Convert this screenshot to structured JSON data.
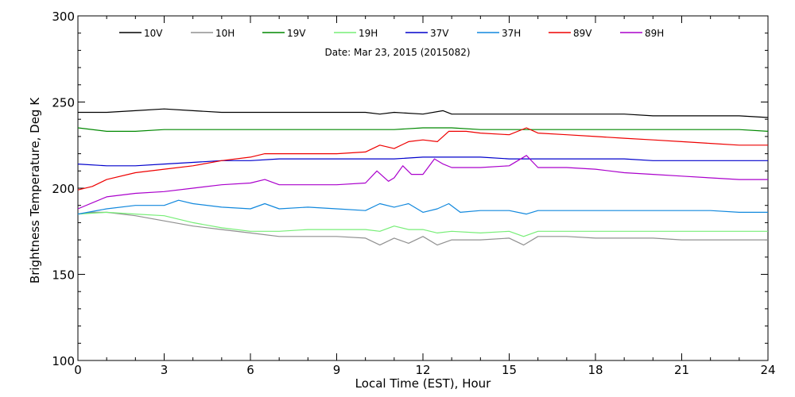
{
  "chart_data": {
    "type": "line",
    "subtitle": "Date: Mar 23, 2015 (2015082)",
    "xlabel": "Local Time (EST), Hour",
    "ylabel": "Brightness Temperature, Deg K",
    "xlim": [
      0,
      24
    ],
    "ylim": [
      100,
      300
    ],
    "x_ticks": [
      "0",
      "3",
      "6",
      "9",
      "12",
      "15",
      "18",
      "21",
      "24"
    ],
    "y_ticks": [
      "100",
      "150",
      "200",
      "250",
      "300"
    ],
    "grid": false,
    "legend_position": "top",
    "series": [
      {
        "name": "10V",
        "color": "#000000",
        "x": [
          0,
          1,
          2,
          3,
          4,
          5,
          6,
          7,
          8,
          9,
          10,
          10.5,
          11,
          12,
          12.7,
          13,
          14,
          15,
          15.5,
          16,
          17,
          18,
          19,
          20,
          21,
          22,
          23,
          24
        ],
        "y": [
          244,
          244,
          245,
          246,
          245,
          244,
          244,
          244,
          244,
          244,
          244,
          243,
          244,
          243,
          245,
          243,
          243,
          243,
          243,
          243,
          243,
          243,
          243,
          242,
          242,
          242,
          242,
          241
        ]
      },
      {
        "name": "10H",
        "color": "#909090",
        "x": [
          0,
          0.5,
          1,
          2,
          3,
          4,
          5,
          6,
          7,
          8,
          9,
          10,
          10.5,
          11,
          11.5,
          12,
          12.5,
          13,
          14,
          15,
          15.5,
          16,
          17,
          18,
          19,
          20,
          21,
          22,
          23,
          24
        ],
        "y": [
          185,
          186,
          186,
          184,
          181,
          178,
          176,
          174,
          172,
          172,
          172,
          171,
          167,
          171,
          168,
          172,
          167,
          170,
          170,
          171,
          167,
          172,
          172,
          171,
          171,
          171,
          170,
          170,
          170,
          170
        ]
      },
      {
        "name": "19V",
        "color": "#008800",
        "x": [
          0,
          1,
          2,
          3,
          4,
          5,
          6,
          7,
          8,
          9,
          10,
          11,
          12,
          13,
          14,
          15,
          16,
          17,
          18,
          19,
          20,
          21,
          22,
          23,
          24
        ],
        "y": [
          235,
          233,
          233,
          234,
          234,
          234,
          234,
          234,
          234,
          234,
          234,
          234,
          235,
          235,
          234,
          234,
          234,
          234,
          234,
          234,
          234,
          234,
          234,
          234,
          233
        ]
      },
      {
        "name": "19H",
        "color": "#77ee77",
        "x": [
          0,
          1,
          2,
          3,
          4,
          5,
          6,
          7,
          8,
          9,
          10,
          10.5,
          11,
          11.5,
          12,
          12.5,
          13,
          14,
          15,
          15.5,
          16,
          17,
          18,
          19,
          20,
          21,
          22,
          23,
          24
        ],
        "y": [
          185,
          186,
          185,
          184,
          180,
          177,
          175,
          175,
          176,
          176,
          176,
          175,
          178,
          176,
          176,
          174,
          175,
          174,
          175,
          172,
          175,
          175,
          175,
          175,
          175,
          175,
          175,
          175,
          175
        ]
      },
      {
        "name": "37V",
        "color": "#0000cc",
        "x": [
          0,
          1,
          2,
          3,
          4,
          5,
          6,
          7,
          8,
          9,
          10,
          11,
          12,
          13,
          14,
          15,
          16,
          17,
          18,
          19,
          20,
          21,
          22,
          23,
          24
        ],
        "y": [
          214,
          213,
          213,
          214,
          215,
          216,
          216,
          217,
          217,
          217,
          217,
          217,
          218,
          218,
          218,
          217,
          217,
          217,
          217,
          217,
          216,
          216,
          216,
          216,
          216
        ]
      },
      {
        "name": "37H",
        "color": "#1188dd",
        "x": [
          0,
          1,
          2,
          3,
          3.5,
          4,
          5,
          6,
          6.5,
          7,
          8,
          9,
          10,
          10.5,
          11,
          11.5,
          12,
          12.5,
          12.9,
          13.3,
          14,
          15,
          15.6,
          16,
          17,
          18,
          19,
          20,
          21,
          22,
          23,
          24
        ],
        "y": [
          185,
          188,
          190,
          190,
          193,
          191,
          189,
          188,
          191,
          188,
          189,
          188,
          187,
          191,
          189,
          191,
          186,
          188,
          191,
          186,
          187,
          187,
          185,
          187,
          187,
          187,
          187,
          187,
          187,
          187,
          186,
          186
        ]
      },
      {
        "name": "89V",
        "color": "#ee0000",
        "x": [
          0,
          0.5,
          1,
          2,
          3,
          4,
          5,
          6,
          6.5,
          7,
          8,
          9,
          10,
          10.5,
          11,
          11.5,
          12,
          12.5,
          12.9,
          13.5,
          14,
          15,
          15.6,
          16,
          17,
          18,
          19,
          20,
          21,
          22,
          23,
          24
        ],
        "y": [
          199,
          201,
          205,
          209,
          211,
          213,
          216,
          218,
          220,
          220,
          220,
          220,
          221,
          225,
          223,
          227,
          228,
          227,
          233,
          233,
          232,
          231,
          235,
          232,
          231,
          230,
          229,
          228,
          227,
          226,
          225,
          225
        ]
      },
      {
        "name": "89H",
        "color": "#aa00cc",
        "x": [
          0,
          1,
          2,
          3,
          4,
          5,
          6,
          6.5,
          7,
          8,
          9,
          10,
          10.4,
          10.8,
          11,
          11.3,
          11.6,
          12,
          12.4,
          12.7,
          13,
          14,
          15,
          15.6,
          16,
          17,
          18,
          19,
          20,
          21,
          22,
          23,
          24
        ],
        "y": [
          188,
          195,
          197,
          198,
          200,
          202,
          203,
          205,
          202,
          202,
          202,
          203,
          210,
          204,
          206,
          213,
          208,
          208,
          217,
          214,
          212,
          212,
          213,
          219,
          212,
          212,
          211,
          209,
          208,
          207,
          206,
          205,
          205
        ]
      }
    ]
  }
}
